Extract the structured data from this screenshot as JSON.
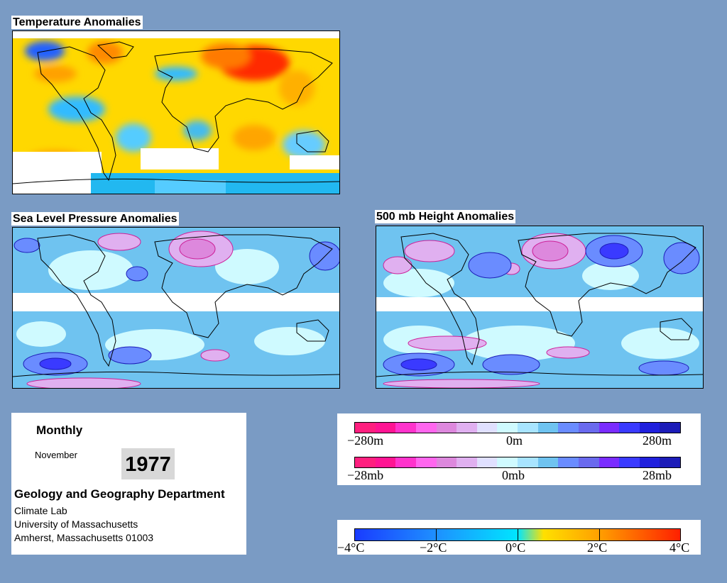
{
  "panels": {
    "temperature": {
      "title": "Temperature Anomalies"
    },
    "slp": {
      "title": "Sea Level Pressure Anomalies"
    },
    "height": {
      "title": "500 mb Height Anomalies"
    }
  },
  "info": {
    "period": "Monthly",
    "month": "November",
    "year": "1977",
    "department": "Geology and Geography Department",
    "address": [
      "Climate Lab",
      "University of Massachusetts",
      "Amherst, Massachusetts 01003"
    ]
  },
  "height_scale": {
    "labels": [
      "−280m",
      "0m",
      "280m"
    ],
    "colors": [
      "#ff1f7f",
      "#ff1493",
      "#ff33cc",
      "#ff66ee",
      "#dd88dd",
      "#e0b0f0",
      "#e0e0ff",
      "#cffaff",
      "#a8e4ff",
      "#6fc3f0",
      "#6a8cff",
      "#6a6aee",
      "#7a2cff",
      "#3a3aff",
      "#2020dd",
      "#1c1cb8"
    ]
  },
  "pressure_scale": {
    "labels": [
      "−28mb",
      "0mb",
      "28mb"
    ],
    "colors": [
      "#ff1f7f",
      "#ff1493",
      "#ff33cc",
      "#ff66ee",
      "#dd88dd",
      "#e0b0f0",
      "#e0e0ff",
      "#cffaff",
      "#a8e4ff",
      "#6fc3f0",
      "#6a8cff",
      "#6a6aee",
      "#7a2cff",
      "#3a3aff",
      "#2020dd",
      "#1c1cb8"
    ]
  },
  "temp_scale": {
    "labels": [
      "−4°C",
      "−2°C",
      "0°C",
      "2°C",
      "4°C"
    ]
  }
}
